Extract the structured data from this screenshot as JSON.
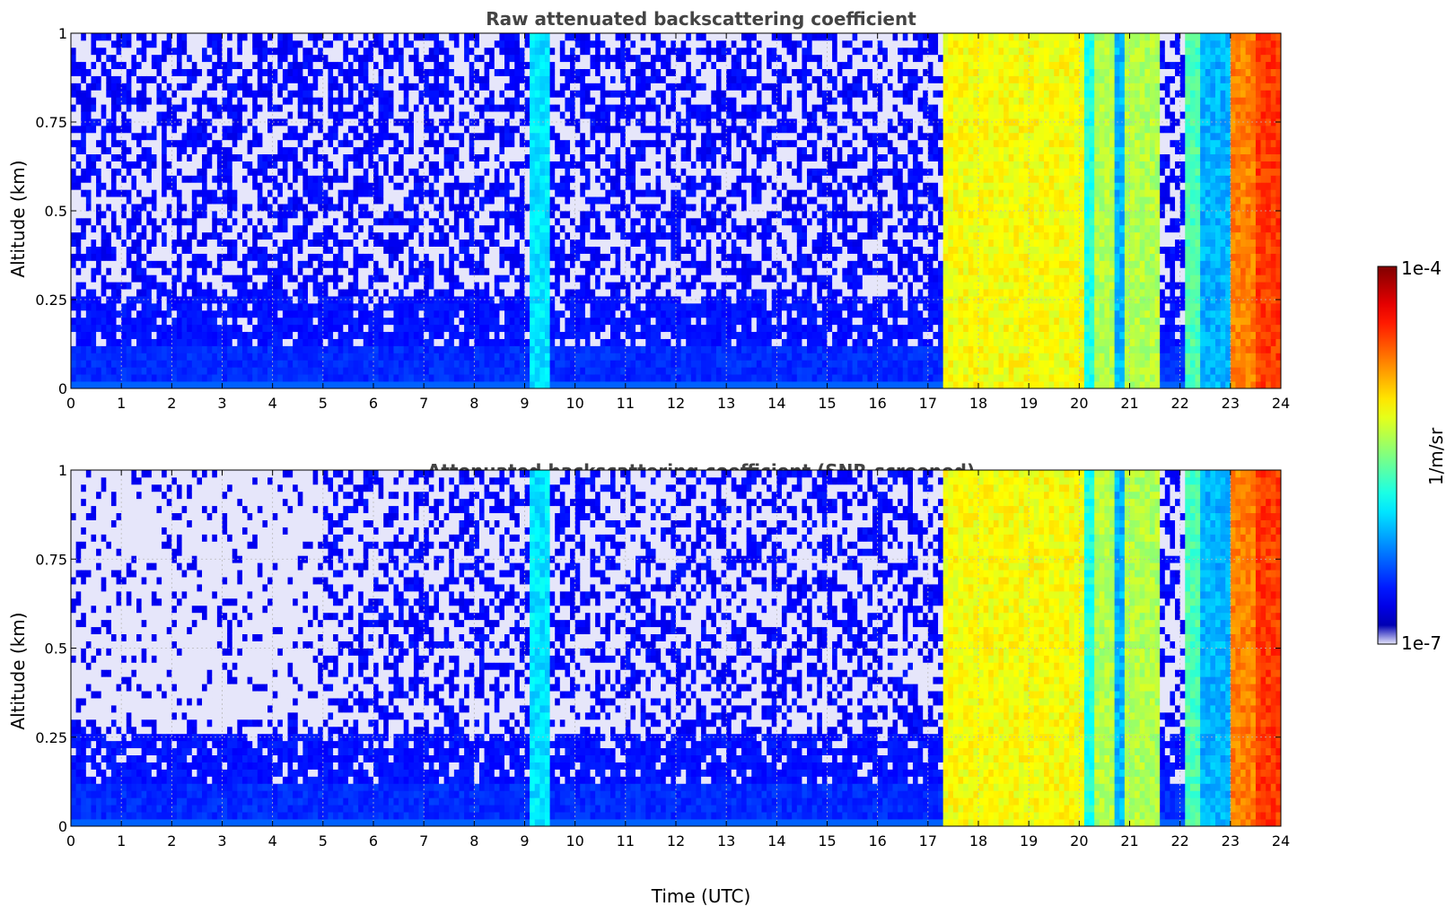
{
  "chart_data": [
    {
      "type": "heatmap",
      "title": "Raw attenuated backscattering coefficient",
      "xlabel": "",
      "ylabel": "Altitude (km)",
      "xlim": [
        0,
        24
      ],
      "ylim": [
        0,
        1
      ],
      "x_ticks": [
        "0",
        "1",
        "2",
        "3",
        "4",
        "5",
        "6",
        "7",
        "8",
        "9",
        "10",
        "11",
        "12",
        "13",
        "14",
        "15",
        "16",
        "17",
        "18",
        "19",
        "20",
        "21",
        "22",
        "23",
        "24"
      ],
      "y_ticks": [
        "0",
        "0.25",
        "0.5",
        "0.75",
        "1"
      ],
      "grid": true,
      "screened": false,
      "bands": [
        {
          "t0": 0,
          "t1": 9.1,
          "value": 0.12
        },
        {
          "t0": 9.1,
          "t1": 9.55,
          "value": 0.35
        },
        {
          "t0": 9.55,
          "t1": 17.35,
          "value": 0.12
        },
        {
          "t0": 17.35,
          "t1": 20.1,
          "value": 0.62
        },
        {
          "t0": 20.1,
          "t1": 20.3,
          "value": 0.4
        },
        {
          "t0": 20.3,
          "t1": 20.7,
          "value": 0.55
        },
        {
          "t0": 20.7,
          "t1": 20.9,
          "value": 0.3
        },
        {
          "t0": 20.9,
          "t1": 21.6,
          "value": 0.55
        },
        {
          "t0": 21.6,
          "t1": 22.1,
          "value": 0.12
        },
        {
          "t0": 22.1,
          "t1": 22.45,
          "value": 0.45
        },
        {
          "t0": 22.45,
          "t1": 23.0,
          "value": 0.3
        },
        {
          "t0": 23.0,
          "t1": 23.5,
          "value": 0.75
        },
        {
          "t0": 23.5,
          "t1": 24.0,
          "value": 0.82
        }
      ]
    },
    {
      "type": "heatmap",
      "title": "Attenuated backscattering coefficient (SNR-screened)",
      "xlabel": "Time (UTC)",
      "ylabel": "Altitude (km)",
      "xlim": [
        0,
        24
      ],
      "ylim": [
        0,
        1
      ],
      "x_ticks": [
        "0",
        "1",
        "2",
        "3",
        "4",
        "5",
        "6",
        "7",
        "8",
        "9",
        "10",
        "11",
        "12",
        "13",
        "14",
        "15",
        "16",
        "17",
        "18",
        "19",
        "20",
        "21",
        "22",
        "23",
        "24"
      ],
      "y_ticks": [
        "0",
        "0.25",
        "0.5",
        "0.75",
        "1"
      ],
      "grid": true,
      "screened": true,
      "bands": [
        {
          "t0": 0,
          "t1": 9.1,
          "value": 0.12
        },
        {
          "t0": 9.1,
          "t1": 9.55,
          "value": 0.35
        },
        {
          "t0": 9.55,
          "t1": 17.35,
          "value": 0.12
        },
        {
          "t0": 17.35,
          "t1": 20.1,
          "value": 0.62
        },
        {
          "t0": 20.1,
          "t1": 20.3,
          "value": 0.4
        },
        {
          "t0": 20.3,
          "t1": 20.7,
          "value": 0.55
        },
        {
          "t0": 20.7,
          "t1": 20.9,
          "value": 0.3
        },
        {
          "t0": 20.9,
          "t1": 21.6,
          "value": 0.55
        },
        {
          "t0": 21.6,
          "t1": 22.1,
          "value": 0.12
        },
        {
          "t0": 22.1,
          "t1": 22.45,
          "value": 0.45
        },
        {
          "t0": 22.45,
          "t1": 23.0,
          "value": 0.3
        },
        {
          "t0": 23.0,
          "t1": 23.5,
          "value": 0.75
        },
        {
          "t0": 23.5,
          "t1": 24.0,
          "value": 0.82
        }
      ]
    }
  ],
  "colorbar": {
    "label": "1/m/sr",
    "max_label": "1e-4",
    "min_label": "1e-7",
    "colormap": "jet",
    "low_color": "#e6e6fa",
    "high_color": "#800000"
  }
}
